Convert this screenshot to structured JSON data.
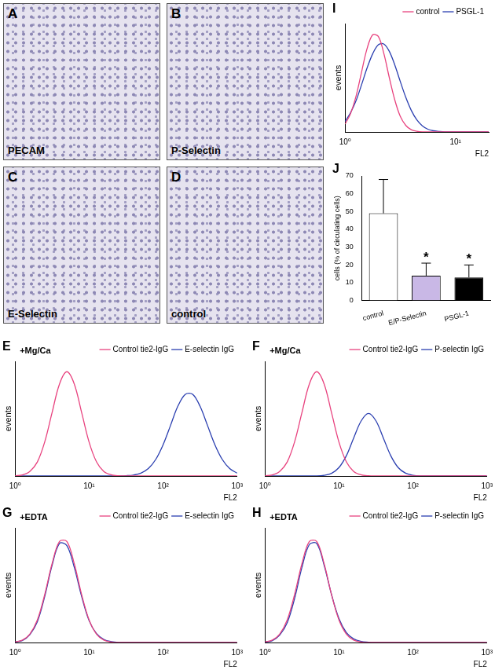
{
  "images": [
    {
      "panel": "A",
      "label": "PECAM"
    },
    {
      "panel": "B",
      "label": "P-Selectin"
    },
    {
      "panel": "C",
      "label": "E-Selectin"
    },
    {
      "panel": "D",
      "label": "control"
    }
  ],
  "chart_data": [
    {
      "type": "line",
      "panel": "I",
      "x_label": "FL2",
      "y_label": "events",
      "log": "x",
      "grid": false,
      "legend": "upper right",
      "tick_labels": "x",
      "xlim": [
        1,
        20
      ],
      "xticks": [
        {
          "value": 1,
          "label": "10⁰"
        },
        {
          "value": 10,
          "label": "10¹"
        }
      ],
      "ylim": [
        0,
        110
      ],
      "x": [
        1,
        1.12,
        1.26,
        1.41,
        1.58,
        1.78,
        2,
        2.24,
        2.51,
        2.82,
        3.16,
        3.55,
        3.98,
        4.47,
        5.01,
        5.62,
        6.31,
        7.08,
        7.94,
        8.91,
        10,
        11.2,
        12.6,
        14.1,
        15.8,
        17.8,
        20
      ],
      "series": [
        {
          "name": "control",
          "color": "#e8437f",
          "values": [
            8,
            18.6,
            36.8,
            60.7,
            84.4,
            98.6,
            96.9,
            80,
            55.6,
            32.5,
            15.9,
            6.6,
            2.3,
            0.7,
            0,
            0,
            0,
            0,
            0,
            0,
            0,
            0,
            0,
            0,
            0,
            0,
            0
          ]
        },
        {
          "name": "PSGL-1",
          "color": "#2b3fb0",
          "values": [
            10.7,
            19.5,
            32,
            47.9,
            64.7,
            79.4,
            88.4,
            89.3,
            82,
            68,
            51.3,
            35,
            21.8,
            12.2,
            6.2,
            2.8,
            1.2,
            0.5,
            0,
            0,
            0,
            0,
            0,
            0,
            0,
            0,
            0
          ]
        }
      ]
    },
    {
      "type": "bar",
      "panel": "J",
      "y_label": "cells (% of circulating cells)",
      "grid": false,
      "categories": [
        "control",
        "E/P-Selectin",
        "PSGL-1"
      ],
      "values": [
        49,
        14,
        13
      ],
      "errors": [
        19,
        7,
        7
      ],
      "colors": [
        "#ffffff",
        "#c9b8e6",
        "#000000"
      ],
      "ylim": [
        0,
        70
      ],
      "yticks": [
        0,
        10,
        20,
        30,
        40,
        50,
        60,
        70
      ],
      "annotations": [
        {
          "category": "E/P-Selectin",
          "text": "*"
        },
        {
          "category": "PSGL-1",
          "text": "*"
        }
      ]
    },
    {
      "type": "line",
      "panel": "E",
      "annotations": [
        "+Mg/Ca"
      ],
      "x_label": "FL2",
      "y_label": "events",
      "log": "x",
      "grid": false,
      "legend": "upper right",
      "tick_labels": "x",
      "xlim": [
        1,
        1000
      ],
      "xticks": [
        {
          "value": 1,
          "label": "10⁰"
        },
        {
          "value": 10,
          "label": "10¹"
        },
        {
          "value": 100,
          "label": "10²"
        },
        {
          "value": 1000,
          "label": "10³"
        }
      ],
      "ylim": [
        0,
        110
      ],
      "x": [
        1,
        1.26,
        1.58,
        2,
        2.51,
        3.16,
        3.98,
        5.01,
        6.31,
        7.94,
        10,
        12.6,
        15.8,
        20,
        25.1,
        31.6,
        39.8,
        50.1,
        63.1,
        79.4,
        100,
        126,
        158,
        200,
        251,
        316,
        398,
        501,
        631,
        794,
        1000
      ],
      "series": [
        {
          "name": "Control tie2-IgG",
          "color": "#e8437f",
          "values": [
            0.2,
            1.1,
            4.4,
            13.5,
            32.5,
            60.7,
            88.2,
            100,
            88.2,
            60.7,
            32.5,
            13.5,
            4.4,
            1.1,
            0.2,
            0,
            0,
            0,
            0,
            0,
            0,
            0,
            0,
            0,
            0,
            0,
            0,
            0,
            0,
            0,
            0
          ]
        },
        {
          "name": "E-selectin IgG",
          "color": "#2b3fb0",
          "values": [
            0,
            0,
            0,
            0,
            0,
            0,
            0,
            0,
            0,
            0,
            0,
            0,
            0,
            0,
            0.1,
            0.3,
            0.9,
            2.7,
            7.1,
            15.8,
            30,
            48.5,
            66.8,
            78.4,
            78.4,
            66.8,
            48.5,
            30,
            15.8,
            7.1,
            2.7
          ]
        }
      ]
    },
    {
      "type": "line",
      "panel": "F",
      "annotations": [
        "+Mg/Ca"
      ],
      "x_label": "FL2",
      "y_label": "events",
      "log": "x",
      "grid": false,
      "legend": "upper right",
      "tick_labels": "x",
      "xlim": [
        1,
        1000
      ],
      "xticks": [
        {
          "value": 1,
          "label": "10⁰"
        },
        {
          "value": 10,
          "label": "10¹"
        },
        {
          "value": 100,
          "label": "10²"
        },
        {
          "value": 1000,
          "label": "10³"
        }
      ],
      "ylim": [
        0,
        110
      ],
      "x": [
        1,
        1.26,
        1.58,
        2,
        2.51,
        3.16,
        3.98,
        5.01,
        6.31,
        7.94,
        10,
        12.6,
        15.8,
        20,
        25.1,
        31.6,
        39.8,
        50.1,
        63.1,
        79.4,
        100,
        126,
        158,
        200,
        251,
        316,
        398,
        501,
        631,
        794,
        1000
      ],
      "series": [
        {
          "name": "Control tie2-IgG",
          "color": "#e8437f",
          "values": [
            0.2,
            1.1,
            4.4,
            13.5,
            32.5,
            60.7,
            88.2,
            100,
            88.2,
            60.7,
            32.5,
            13.5,
            4.4,
            1.1,
            0.2,
            0,
            0,
            0,
            0,
            0,
            0,
            0,
            0,
            0,
            0,
            0,
            0,
            0,
            0,
            0,
            0
          ]
        },
        {
          "name": "P-selectin IgG",
          "color": "#2b3fb0",
          "values": [
            0,
            0,
            0,
            0,
            0,
            0,
            0,
            0,
            0.7,
            2.6,
            8.1,
            19.5,
            36.4,
            52.9,
            60,
            52.9,
            36.4,
            19.5,
            8.1,
            2.7,
            0.7,
            0,
            0,
            0,
            0,
            0,
            0,
            0,
            0,
            0,
            0
          ]
        }
      ]
    },
    {
      "type": "line",
      "panel": "G",
      "annotations": [
        "+EDTA"
      ],
      "x_label": "FL2",
      "y_label": "events",
      "log": "x",
      "grid": false,
      "legend": "upper right",
      "tick_labels": "x",
      "xlim": [
        1,
        1000
      ],
      "xticks": [
        {
          "value": 1,
          "label": "10⁰"
        },
        {
          "value": 10,
          "label": "10¹"
        },
        {
          "value": 100,
          "label": "10²"
        },
        {
          "value": 1000,
          "label": "10³"
        }
      ],
      "ylim": [
        0,
        110
      ],
      "x": [
        1,
        1.26,
        1.58,
        2,
        2.51,
        3.16,
        3.98,
        5.01,
        6.31,
        7.94,
        10,
        12.6,
        15.8,
        20,
        25.1,
        31.6,
        39.8,
        50.1,
        63.1,
        79.4,
        100,
        126,
        158,
        200,
        251,
        316,
        398,
        501,
        631,
        794,
        1000
      ],
      "series": [
        {
          "name": "Control tie2-IgG",
          "color": "#e8437f",
          "values": [
            0.5,
            2.3,
            8,
            21.6,
            45.8,
            75.5,
            96.9,
            96.9,
            75.5,
            45.8,
            21.6,
            8,
            2.3,
            0.5,
            0,
            0,
            0,
            0,
            0,
            0,
            0,
            0,
            0,
            0,
            0,
            0,
            0,
            0,
            0,
            0,
            0
          ]
        },
        {
          "name": "E-selectin IgG",
          "color": "#2b3fb0",
          "values": [
            0.4,
            2,
            7.5,
            20,
            44,
            74,
            95,
            93,
            72,
            44,
            21,
            8.5,
            3,
            0.8,
            0,
            0,
            0,
            0,
            0,
            0,
            0,
            0,
            0,
            0,
            0,
            0,
            0,
            0,
            0,
            0,
            0
          ]
        }
      ]
    },
    {
      "type": "line",
      "panel": "H",
      "annotations": [
        "+EDTA"
      ],
      "x_label": "FL2",
      "y_label": "events",
      "log": "x",
      "grid": false,
      "legend": "upper right",
      "tick_labels": "x",
      "xlim": [
        1,
        1000
      ],
      "xticks": [
        {
          "value": 1,
          "label": "10⁰"
        },
        {
          "value": 10,
          "label": "10¹"
        },
        {
          "value": 100,
          "label": "10²"
        },
        {
          "value": 1000,
          "label": "10³"
        }
      ],
      "ylim": [
        0,
        110
      ],
      "x": [
        1,
        1.26,
        1.58,
        2,
        2.51,
        3.16,
        3.98,
        5.01,
        6.31,
        7.94,
        10,
        12.6,
        15.8,
        20,
        25.1,
        31.6,
        39.8,
        50.1,
        63.1,
        79.4,
        100,
        126,
        158,
        200,
        251,
        316,
        398,
        501,
        631,
        794,
        1000
      ],
      "series": [
        {
          "name": "Control tie2-IgG",
          "color": "#e8437f",
          "values": [
            0.5,
            2.3,
            8,
            21.6,
            45.8,
            75.5,
            96.9,
            96.9,
            75.5,
            45.8,
            21.6,
            8,
            2.3,
            0.5,
            0,
            0,
            0,
            0,
            0,
            0,
            0,
            0,
            0,
            0,
            0,
            0,
            0,
            0,
            0,
            0,
            0
          ]
        },
        {
          "name": "P-selectin IgG",
          "color": "#2b3fb0",
          "values": [
            0.3,
            1.8,
            7,
            19,
            42,
            72,
            94,
            95,
            74,
            46,
            23,
            9.5,
            3.5,
            1,
            0.3,
            0,
            0,
            0,
            0,
            0,
            0,
            0,
            0,
            0,
            0,
            0,
            0,
            0,
            0,
            0,
            0
          ]
        }
      ]
    }
  ]
}
